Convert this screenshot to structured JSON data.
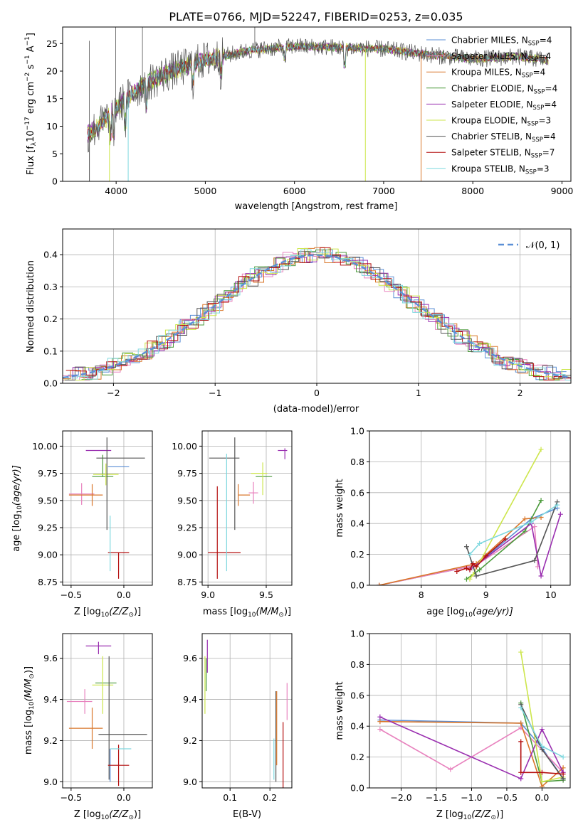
{
  "title": "PLATE=0766, MJD=52247, FIBERID=0253, z=0.035",
  "palette": {
    "Chabrier MILES": "#5b8fd6",
    "Salpeter MILES": "#e882be",
    "Kroupa MILES": "#d9772b",
    "Chabrier ELODIE": "#4a9a3a",
    "Salpeter ELODIE": "#9a2fb0",
    "Kroupa ELODIE": "#cde64c",
    "Chabrier STELIB": "#555555",
    "Salpeter STELIB": "#b40f0f",
    "Kroupa STELIB": "#7fd8df",
    "normal_curve": "#5b8fd6",
    "grid": "#b0b0b0"
  },
  "chart_data": [
    {
      "id": "spectrum",
      "type": "line",
      "title": "PLATE=0766, MJD=52247, FIBERID=0253, z=0.035",
      "xlabel": "wavelength [Angstrom, rest frame]",
      "ylabel_main": "Flux [f",
      "ylabel_sub_lambda": "λ",
      "ylabel_mid": "10",
      "ylabel_exp1": "−17",
      "ylabel_unit1": " erg cm",
      "ylabel_exp2": "−2",
      "ylabel_unit2": " s",
      "ylabel_exp3": "−1",
      "ylabel_unit3": " A",
      "ylabel_exp4": "−1",
      "ylabel_end": "]",
      "xlim": [
        3400,
        9100
      ],
      "ylim": [
        0,
        28
      ],
      "xticks": [
        4000,
        5000,
        6000,
        7000,
        8000,
        9000
      ],
      "yticks": [
        0,
        5,
        10,
        15,
        20,
        25
      ],
      "grid": false,
      "legend_position": "right",
      "data_range": [
        3680,
        8850
      ],
      "continuum_x": [
        3680,
        3800,
        3950,
        4100,
        4300,
        4600,
        5000,
        5500,
        6000,
        6500,
        7000,
        7500,
        8000,
        8500,
        8850
      ],
      "continuum_y": [
        8.5,
        10.0,
        12.5,
        14.8,
        17.5,
        19.8,
        22.0,
        23.8,
        24.5,
        24.3,
        24.0,
        23.0,
        22.2,
        22.6,
        22.0
      ],
      "series": [
        {
          "name": "Chabrier MILES",
          "nssp": "4"
        },
        {
          "name": "Salpeter MILES",
          "nssp": "4"
        },
        {
          "name": "Kroupa MILES",
          "nssp": "4"
        },
        {
          "name": "Chabrier ELODIE",
          "nssp": "4"
        },
        {
          "name": "Salpeter ELODIE",
          "nssp": "4"
        },
        {
          "name": "Kroupa ELODIE",
          "nssp": "3"
        },
        {
          "name": "Chabrier STELIB",
          "nssp": "4"
        },
        {
          "name": "Salpeter STELIB",
          "nssp": "7"
        },
        {
          "name": "Kroupa STELIB",
          "nssp": "3"
        }
      ],
      "legend_n_label": "N",
      "legend_n_sub": "SSP"
    },
    {
      "id": "residuals",
      "type": "bar",
      "xlabel": "(data-model)/error",
      "ylabel": "Normed distribution",
      "xlim": [
        -2.5,
        2.5
      ],
      "ylim": [
        0,
        0.48
      ],
      "xticks": [
        -2,
        -1,
        0,
        1,
        2
      ],
      "xtick_labels": [
        "−2",
        "−1",
        "0",
        "1",
        "2"
      ],
      "yticks": [
        0.0,
        0.1,
        0.2,
        0.3,
        0.4
      ],
      "ytick_labels": [
        "0.0",
        "0.1",
        "0.2",
        "0.3",
        "0.4"
      ],
      "grid": true,
      "legend_position": "top-right",
      "legend_label": "𝒩(0, 1)",
      "bin_width": 0.1,
      "normal_mean": 0,
      "normal_sigma": 1
    },
    {
      "id": "age-vs-z",
      "type": "scatter",
      "xlabel_pre": "Z [log",
      "xlabel_sub": "10",
      "xlabel_post": "(Z/Z",
      "xlabel_sun": "⊙",
      "xlabel_end": ")]",
      "ylabel_pre": "age  [log",
      "ylabel_sub": "10",
      "ylabel_post": "(age/yr)]",
      "xlim": [
        -0.58,
        0.27
      ],
      "ylim": [
        8.72,
        10.14
      ],
      "xticks": [
        -0.5,
        0.0
      ],
      "xtick_labels": [
        "−0.5",
        "0.0"
      ],
      "yticks": [
        8.75,
        9.0,
        9.25,
        9.5,
        9.75,
        10.0
      ],
      "ytick_labels": [
        "8.75",
        "9.00",
        "9.25",
        "9.50",
        "9.75",
        "10.00"
      ],
      "grid": true,
      "points": [
        {
          "s": "Chabrier MILES",
          "x": -0.05,
          "xl": 0.1,
          "xh": 0.1,
          "y": 9.81,
          "yl": 0.0,
          "yh": 0.0
        },
        {
          "s": "Salpeter MILES",
          "x": -0.4,
          "xl": 0.12,
          "xh": 0.12,
          "y": 9.56,
          "yl": 0.1,
          "yh": 0.1
        },
        {
          "s": "Kroupa MILES",
          "x": -0.3,
          "xl": 0.22,
          "xh": 0.1,
          "y": 9.55,
          "yl": 0.1,
          "yh": 0.1
        },
        {
          "s": "Chabrier ELODIE",
          "x": -0.2,
          "xl": 0.1,
          "xh": 0.1,
          "y": 9.72,
          "yl": 0.0,
          "yh": 0.2
        },
        {
          "s": "Salpeter ELODIE",
          "x": -0.24,
          "xl": 0.12,
          "xh": 0.12,
          "y": 9.96,
          "yl": 0.0,
          "yh": 0.0
        },
        {
          "s": "Kroupa ELODIE",
          "x": -0.17,
          "xl": 0.12,
          "xh": 0.12,
          "y": 9.74,
          "yl": 0.1,
          "yh": 0.1
        },
        {
          "s": "Chabrier STELIB",
          "x": -0.16,
          "xl": 0.1,
          "xh": 0.36,
          "y": 9.89,
          "yl": 0.66,
          "yh": 0.19
        },
        {
          "s": "Salpeter STELIB",
          "x": -0.05,
          "xl": 0.1,
          "xh": 0.1,
          "y": 9.02,
          "yl": 0.24,
          "yh": 0.0
        },
        {
          "s": "Kroupa STELIB",
          "x": -0.13,
          "xl": 0.0,
          "xh": 0.0,
          "y": 9.36,
          "yl": 0.51,
          "yh": 0.0
        }
      ]
    },
    {
      "id": "age-vs-mass",
      "type": "scatter",
      "xlabel_pre": "mass [log",
      "xlabel_sub": "10",
      "xlabel_post": "(M/M",
      "xlabel_sun": "⊙",
      "xlabel_end": ")]",
      "xlim": [
        8.95,
        9.72
      ],
      "ylim": [
        8.72,
        10.14
      ],
      "xticks": [
        9.0,
        9.5
      ],
      "xtick_labels": [
        "9.0",
        "9.5"
      ],
      "yticks": [
        8.75,
        9.0,
        9.25,
        9.5,
        9.75,
        10.0
      ],
      "ytick_labels": [
        "8.75",
        "9.00",
        "9.25",
        "9.50",
        "9.75",
        "10.00"
      ],
      "grid": true,
      "points": [
        {
          "s": "Chabrier MILES",
          "x": 9.16,
          "xl": 0.0,
          "xh": 0.0,
          "y": 9.81,
          "yl": 0.0,
          "yh": 0.0
        },
        {
          "s": "Salpeter MILES",
          "x": 9.39,
          "xl": 0.04,
          "xh": 0.04,
          "y": 9.57,
          "yl": 0.1,
          "yh": 0.1
        },
        {
          "s": "Kroupa MILES",
          "x": 9.26,
          "xl": 0.0,
          "xh": 0.1,
          "y": 9.55,
          "yl": 0.1,
          "yh": 0.1
        },
        {
          "s": "Chabrier ELODIE",
          "x": 9.48,
          "xl": 0.07,
          "xh": 0.07,
          "y": 9.72,
          "yl": 0.0,
          "yh": 0.0
        },
        {
          "s": "Salpeter ELODIE",
          "x": 9.66,
          "xl": 0.06,
          "xh": 0.02,
          "y": 9.96,
          "yl": 0.08,
          "yh": 0.02
        },
        {
          "s": "Kroupa ELODIE",
          "x": 9.47,
          "xl": 0.1,
          "xh": 0.04,
          "y": 9.75,
          "yl": 0.2,
          "yh": 0.1
        },
        {
          "s": "Chabrier STELIB",
          "x": 9.23,
          "xl": 0.22,
          "xh": 0.04,
          "y": 9.89,
          "yl": 0.66,
          "yh": 0.19
        },
        {
          "s": "Salpeter STELIB",
          "x": 9.08,
          "xl": 0.08,
          "xh": 0.2,
          "y": 9.02,
          "yl": 0.24,
          "yh": 0.61
        },
        {
          "s": "Kroupa STELIB",
          "x": 9.16,
          "xl": 0.0,
          "xh": 0.0,
          "y": 9.33,
          "yl": 0.48,
          "yh": 0.6
        }
      ]
    },
    {
      "id": "weight-vs-age",
      "type": "line",
      "xlabel_pre": "age  [log",
      "xlabel_sub": "10",
      "xlabel_post": "(age/yr)]",
      "ylabel": "mass weight",
      "xlim": [
        7.2,
        10.3
      ],
      "ylim": [
        0,
        1.0
      ],
      "xticks": [
        8,
        9,
        10
      ],
      "xtick_labels": [
        "8",
        "9",
        "10"
      ],
      "yticks": [
        0.0,
        0.2,
        0.4,
        0.6,
        0.8,
        1.0
      ],
      "ytick_labels": [
        "0.0",
        "0.2",
        "0.4",
        "0.6",
        "0.8",
        "1.0"
      ],
      "grid": true,
      "series": [
        {
          "s": "Chabrier MILES",
          "x": [
            7.35,
            8.85,
            9.7,
            10.1
          ],
          "y": [
            0.0,
            0.13,
            0.43,
            0.5
          ]
        },
        {
          "s": "Salpeter MILES",
          "x": [
            7.35,
            8.85,
            9.75,
            9.8
          ],
          "y": [
            0.0,
            0.13,
            0.38,
            0.12
          ]
        },
        {
          "s": "Kroupa MILES",
          "x": [
            7.35,
            8.85,
            9.6,
            9.85
          ],
          "y": [
            0.0,
            0.14,
            0.43,
            0.44
          ]
        },
        {
          "s": "Chabrier ELODIE",
          "x": [
            8.7,
            8.9,
            9.6,
            9.85
          ],
          "y": [
            0.04,
            0.1,
            0.35,
            0.55
          ]
        },
        {
          "s": "Salpeter ELODIE",
          "x": [
            8.75,
            9.7,
            9.85,
            10.15
          ],
          "y": [
            0.1,
            0.4,
            0.06,
            0.46
          ]
        },
        {
          "s": "Kroupa ELODIE",
          "x": [
            8.75,
            8.8,
            9.85
          ],
          "y": [
            0.04,
            0.07,
            0.88
          ]
        },
        {
          "s": "Chabrier STELIB",
          "x": [
            8.7,
            8.85,
            9.75,
            10.1
          ],
          "y": [
            0.25,
            0.06,
            0.16,
            0.54
          ]
        },
        {
          "s": "Salpeter STELIB",
          "x": [
            8.55,
            8.7,
            8.75,
            8.8,
            8.85,
            9.0,
            9.3
          ],
          "y": [
            0.09,
            0.11,
            0.1,
            0.14,
            0.12,
            0.19,
            0.3
          ]
        },
        {
          "s": "Kroupa STELIB",
          "x": [
            8.75,
            8.9,
            9.7,
            10.1
          ],
          "y": [
            0.2,
            0.27,
            0.41,
            0.52
          ]
        }
      ]
    },
    {
      "id": "mass-vs-z",
      "type": "scatter",
      "xlabel_pre": "Z [log",
      "xlabel_sub": "10",
      "xlabel_post": "(Z/Z",
      "xlabel_sun": "⊙",
      "xlabel_end": ")]",
      "ylabel_pre": "mass [log",
      "ylabel_sub": "10",
      "ylabel_post": "(M/M",
      "ylabel_sun": "⊙",
      "ylabel_end": ")]",
      "xlim": [
        -0.58,
        0.27
      ],
      "ylim": [
        8.97,
        9.72
      ],
      "xticks": [
        -0.5,
        0.0
      ],
      "xtick_labels": [
        "−0.5",
        "0.0"
      ],
      "yticks": [
        9.0,
        9.2,
        9.4,
        9.6
      ],
      "ytick_labels": [
        "9.0",
        "9.2",
        "9.4",
        "9.6"
      ],
      "grid": true,
      "points": [
        {
          "s": "Chabrier MILES",
          "x": -0.13,
          "xl": 0.0,
          "xh": 0.0,
          "y": 9.16,
          "yl": 0.16,
          "yh": 0.0
        },
        {
          "s": "Salpeter MILES",
          "x": -0.37,
          "xl": 0.17,
          "xh": 0.07,
          "y": 9.39,
          "yl": 0.06,
          "yh": 0.06
        },
        {
          "s": "Kroupa MILES",
          "x": -0.3,
          "xl": 0.22,
          "xh": 0.1,
          "y": 9.26,
          "yl": 0.1,
          "yh": 0.1
        },
        {
          "s": "Chabrier ELODIE",
          "x": -0.17,
          "xl": 0.1,
          "xh": 0.1,
          "y": 9.48,
          "yl": 0.0,
          "yh": 0.0
        },
        {
          "s": "Salpeter ELODIE",
          "x": -0.24,
          "xl": 0.12,
          "xh": 0.12,
          "y": 9.66,
          "yl": 0.04,
          "yh": 0.02
        },
        {
          "s": "Kroupa ELODIE",
          "x": -0.2,
          "xl": 0.1,
          "xh": 0.1,
          "y": 9.47,
          "yl": 0.14,
          "yh": 0.14
        },
        {
          "s": "Chabrier STELIB",
          "x": -0.14,
          "xl": 0.1,
          "xh": 0.36,
          "y": 9.23,
          "yl": 0.22,
          "yh": 0.38
        },
        {
          "s": "Salpeter STELIB",
          "x": -0.05,
          "xl": 0.1,
          "xh": 0.1,
          "y": 9.08,
          "yl": 0.1,
          "yh": 0.1
        },
        {
          "s": "Kroupa STELIB",
          "x": -0.13,
          "xl": 0.0,
          "xh": 0.2,
          "y": 9.16,
          "yl": 0.0,
          "yh": 0.0
        }
      ]
    },
    {
      "id": "mass-vs-ebv",
      "type": "scatter",
      "xlabel": "E(B-V)",
      "xlim": [
        0.03,
        0.255
      ],
      "ylim": [
        8.97,
        9.72
      ],
      "xticks": [
        0.1,
        0.2
      ],
      "xtick_labels": [
        "0.1",
        "0.2"
      ],
      "yticks": [
        9.0,
        9.2,
        9.4,
        9.6
      ],
      "ytick_labels": [
        "9.0",
        "9.2",
        "9.4",
        "9.6"
      ],
      "grid": true,
      "points": [
        {
          "s": "Kroupa ELODIE",
          "x": 0.037,
          "y": 9.47,
          "yl": 0.14,
          "yh": 0.14
        },
        {
          "s": "Chabrier ELODIE",
          "x": 0.04,
          "y": 9.5,
          "yl": 0.06,
          "yh": 0.1
        },
        {
          "s": "Salpeter ELODIE",
          "x": 0.043,
          "y": 9.61,
          "yl": 0.08,
          "yh": 0.08
        },
        {
          "s": "Kroupa STELIB",
          "x": 0.21,
          "y": 9.11,
          "yl": 0.1,
          "yh": 0.1
        },
        {
          "s": "Chabrier STELIB",
          "x": 0.215,
          "y": 9.22,
          "yl": 0.22,
          "yh": 0.22
        },
        {
          "s": "Kroupa MILES",
          "x": 0.217,
          "y": 9.26,
          "yl": 0.18,
          "yh": 0.18
        },
        {
          "s": "Salpeter STELIB",
          "x": 0.233,
          "y": 9.08,
          "yl": 0.21,
          "yh": 0.21
        },
        {
          "s": "Salpeter MILES",
          "x": 0.243,
          "y": 9.39,
          "yl": 0.09,
          "yh": 0.09
        }
      ]
    },
    {
      "id": "weight-vs-z",
      "type": "line",
      "xlabel_pre": "Z [log",
      "xlabel_sub": "10",
      "xlabel_post": "(Z/Z",
      "xlabel_sun": "⊙",
      "xlabel_end": ")]",
      "ylabel": "mass weight",
      "xlim": [
        -2.45,
        0.4
      ],
      "ylim": [
        0,
        1.0
      ],
      "xticks": [
        -2.0,
        -1.5,
        -1.0,
        -0.5,
        0.0
      ],
      "xtick_labels": [
        "−2.0",
        "−1.5",
        "−1.0",
        "−0.5",
        "0.0"
      ],
      "yticks": [
        0.0,
        0.2,
        0.4,
        0.6,
        0.8,
        1.0
      ],
      "ytick_labels": [
        "0.0",
        "0.2",
        "0.4",
        "0.6",
        "0.8",
        "1.0"
      ],
      "grid": true,
      "series": [
        {
          "s": "Chabrier MILES",
          "x": [
            -2.3,
            -0.3,
            0.0,
            0.3
          ],
          "y": [
            0.44,
            0.42,
            0.26,
            0.06
          ]
        },
        {
          "s": "Salpeter MILES",
          "x": [
            -2.3,
            -1.3,
            -0.3,
            0.3
          ],
          "y": [
            0.38,
            0.12,
            0.39,
            0.1
          ]
        },
        {
          "s": "Kroupa MILES",
          "x": [
            -2.3,
            -0.3,
            0.0,
            0.3
          ],
          "y": [
            0.43,
            0.42,
            0.01,
            0.13
          ]
        },
        {
          "s": "Chabrier ELODIE",
          "x": [
            -0.3,
            0.0,
            0.3
          ],
          "y": [
            0.55,
            0.04,
            0.05
          ]
        },
        {
          "s": "Salpeter ELODIE",
          "x": [
            -2.3,
            -0.3,
            0.0,
            0.3
          ],
          "y": [
            0.46,
            0.06,
            0.38,
            0.1
          ]
        },
        {
          "s": "Kroupa ELODIE",
          "x": [
            -0.3,
            0.0,
            0.3
          ],
          "y": [
            0.88,
            0.04,
            0.07
          ]
        },
        {
          "s": "Chabrier STELIB",
          "x": [
            -0.3,
            0.0,
            0.3
          ],
          "y": [
            0.54,
            0.25,
            0.06
          ]
        },
        {
          "s": "Salpeter STELIB",
          "x": [
            -0.3,
            -0.3,
            0.0,
            0.3
          ],
          "y": [
            0.3,
            0.1,
            0.1,
            0.09
          ]
        },
        {
          "s": "Kroupa STELIB",
          "x": [
            -0.3,
            0.0,
            0.3
          ],
          "y": [
            0.52,
            0.27,
            0.2
          ]
        }
      ]
    }
  ]
}
